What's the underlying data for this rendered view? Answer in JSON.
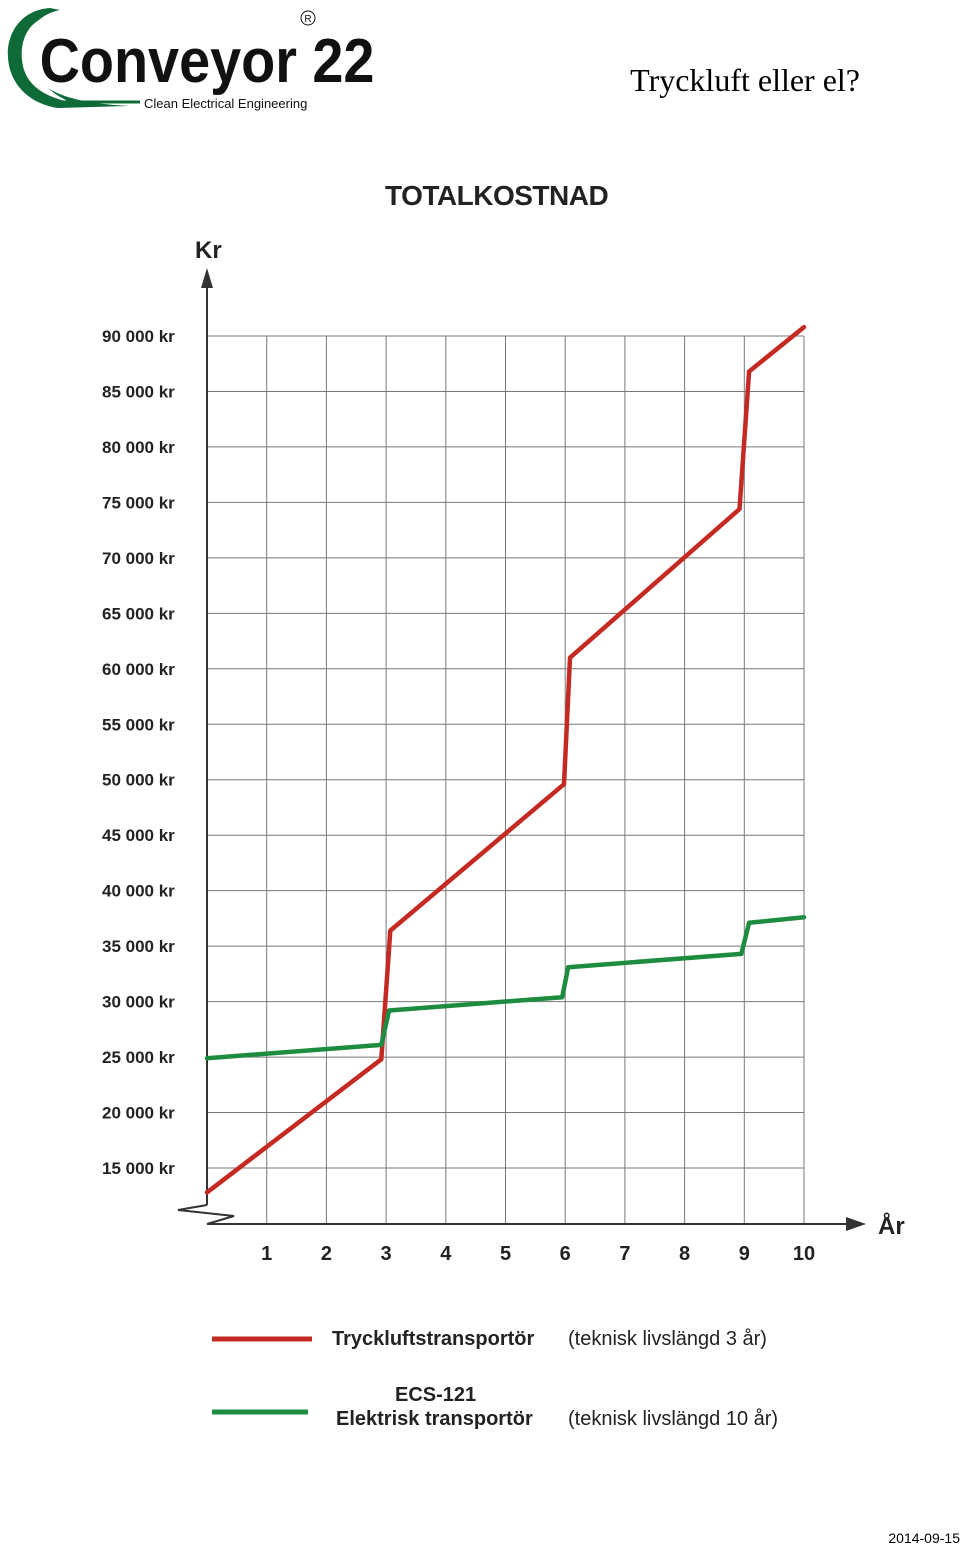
{
  "header": {
    "logo_text": "Conveyor 22",
    "logo_tagline": "Clean Electrical Engineering",
    "logo_registered": "R",
    "heading": "Tryckluft eller el?"
  },
  "colors": {
    "logo_green": "#0e6b38",
    "series_red": "#c52a22",
    "series_green": "#1e8c3f",
    "grid": "#666666"
  },
  "chart_data": {
    "type": "line",
    "title": "TOTALKOSTNAD",
    "ylabel": "Kr",
    "xlabel": "År",
    "ylim": [
      12500,
      90000
    ],
    "xlim": [
      0,
      10
    ],
    "grid": true,
    "y_ticks": [
      15000,
      20000,
      25000,
      30000,
      35000,
      40000,
      45000,
      50000,
      55000,
      60000,
      65000,
      70000,
      75000,
      80000,
      85000,
      90000
    ],
    "y_tick_labels": [
      "15 000 kr",
      "20 000 kr",
      "25 000 kr",
      "30 000 kr",
      "35 000 kr",
      "40 000 kr",
      "45 000 kr",
      "50 000 kr",
      "55 000 kr",
      "60 000 kr",
      "65 000 kr",
      "70 000 kr",
      "75 000 kr",
      "80 000 kr",
      "85 000 kr",
      "90 000 kr"
    ],
    "x_ticks": [
      1,
      2,
      3,
      4,
      5,
      6,
      7,
      8,
      9,
      10
    ],
    "x_tick_labels": [
      "1",
      "2",
      "3",
      "4",
      "5",
      "6",
      "7",
      "8",
      "9",
      "10"
    ],
    "series": [
      {
        "name": "Tryckluftstransportör",
        "note": "(teknisk livslängd 3 år)",
        "color": "#c52a22",
        "points": [
          [
            0,
            12800
          ],
          [
            2.92,
            24800
          ],
          [
            3.07,
            36400
          ],
          [
            5.98,
            49600
          ],
          [
            6.08,
            61000
          ],
          [
            8.92,
            74400
          ],
          [
            9.08,
            86800
          ],
          [
            10,
            90800
          ]
        ]
      },
      {
        "name": "ECS-121",
        "name2": "Elektrisk transportör",
        "note": "(teknisk livslängd 10 år)",
        "color": "#1e8c3f",
        "points": [
          [
            0,
            24900
          ],
          [
            2.92,
            26100
          ],
          [
            3.05,
            29200
          ],
          [
            5.95,
            30400
          ],
          [
            6.05,
            33100
          ],
          [
            8.95,
            34300
          ],
          [
            9.08,
            37100
          ],
          [
            10,
            37600
          ]
        ]
      }
    ]
  },
  "footer": {
    "date": "2014-09-15"
  }
}
